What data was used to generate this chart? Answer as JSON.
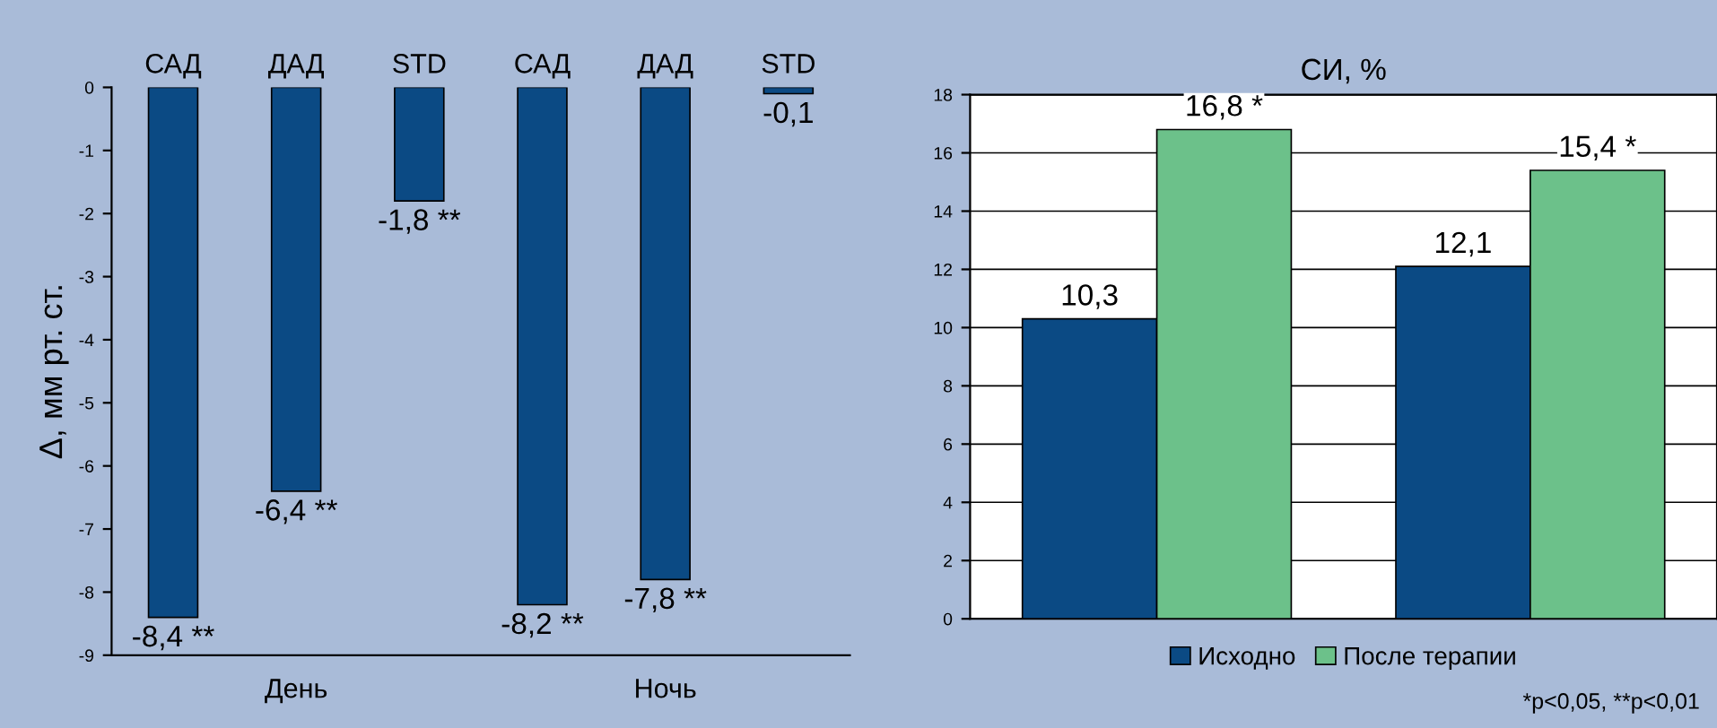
{
  "chart_data": [
    {
      "type": "bar",
      "ylabel": "Δ, мм рт. ст.",
      "categories": [
        "САД",
        "ДАД",
        "STD",
        "САД",
        "ДАД",
        "STD"
      ],
      "values": [
        -8.4,
        -6.4,
        -1.8,
        -8.2,
        -7.8,
        -0.1
      ],
      "color": "#0b4a84",
      "value_labels": [
        "-8,4 **",
        "-6,4 **",
        "-1,8 **",
        "-8,2 **",
        "-7,8 **",
        "-0,1"
      ],
      "ylim": [
        -9,
        0
      ],
      "yticks": [
        0,
        -1,
        -2,
        -3,
        -4,
        -5,
        -6,
        -7,
        -8,
        -9
      ],
      "grid": false,
      "legend": false,
      "annotations": [
        "День",
        "Ночь"
      ]
    },
    {
      "type": "bar",
      "title": "СИ, %",
      "categories": [
        null,
        null
      ],
      "series": [
        {
          "name": "Исходно",
          "color": "#0b4a84",
          "values": [
            10.3,
            12.1
          ],
          "value_labels": [
            "10,3",
            "12,1"
          ]
        },
        {
          "name": "После терапии",
          "color": "#6cc18a",
          "values": [
            16.8,
            15.4
          ],
          "value_labels": [
            "16,8 *",
            "15,4 *"
          ]
        }
      ],
      "ylim": [
        0,
        18
      ],
      "yticks": [
        0,
        2,
        4,
        6,
        8,
        10,
        12,
        14,
        16,
        18
      ],
      "grid": "y",
      "legend": "bottom",
      "annotations": [
        "*p<0,05, **p<0,01"
      ]
    }
  ]
}
